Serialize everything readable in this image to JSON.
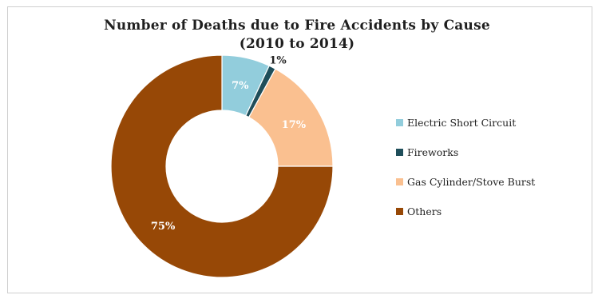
{
  "chart_data": {
    "type": "pie",
    "variant": "donut",
    "title_line1": "Number of Deaths due to Fire Accidents by Cause",
    "title_line2": "(2010 to 2014)",
    "categories": [
      "Electric Short Circuit",
      "Fireworks",
      "Gas Cylinder/Stove Burst",
      "Others"
    ],
    "values": [
      7,
      1,
      17,
      75
    ],
    "labels": [
      "7%",
      "1%",
      "17%",
      "75%"
    ],
    "colors": [
      "#92cddc",
      "#1f4e5a",
      "#fac090",
      "#974806"
    ],
    "legend_position": "right"
  }
}
